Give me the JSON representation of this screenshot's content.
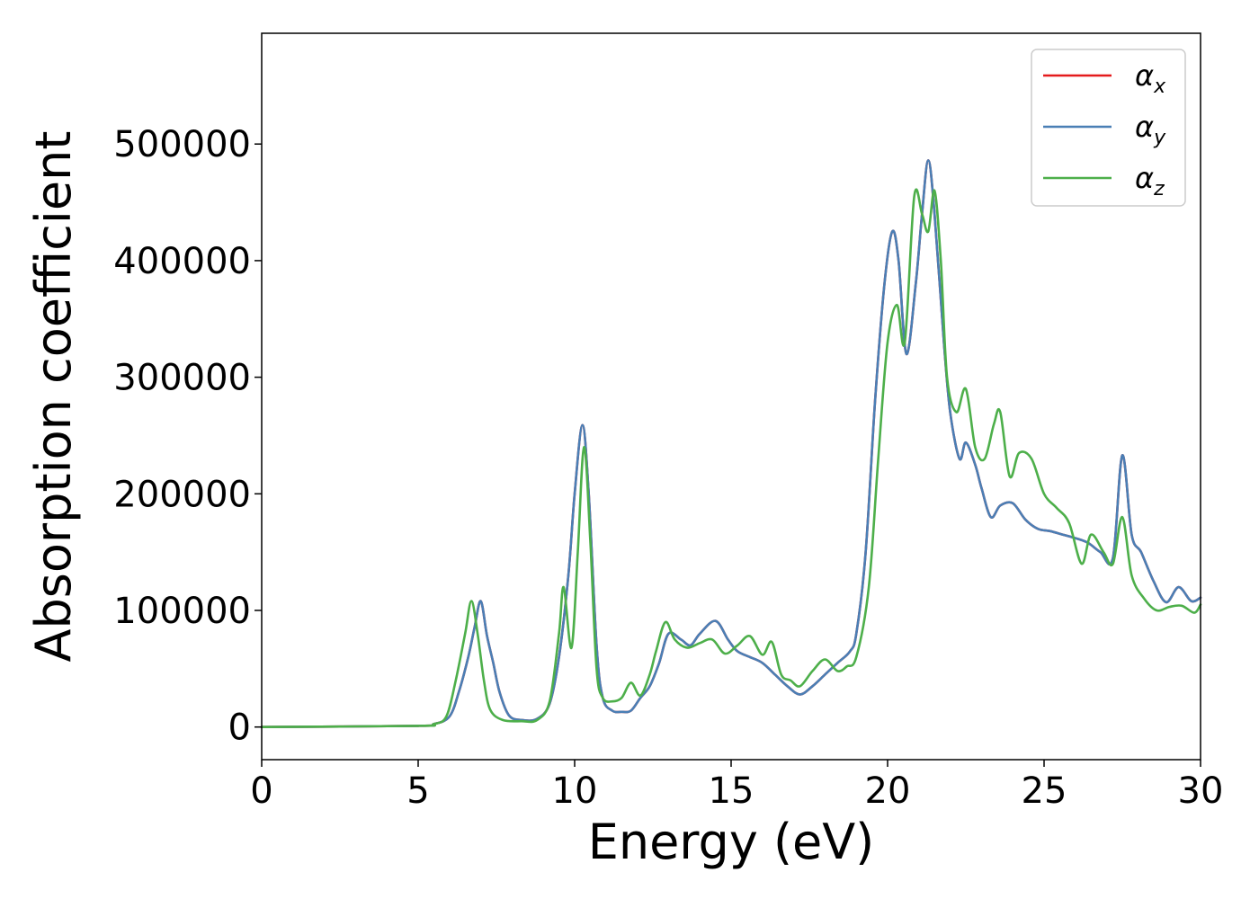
{
  "chart_data": {
    "type": "line",
    "title": "",
    "xlabel": "Energy (eV)",
    "ylabel": "Absorption coefficient",
    "xlim": [
      0,
      30
    ],
    "ylim": [
      -28000,
      595000
    ],
    "xticks": [
      0,
      5,
      10,
      15,
      20,
      25,
      30
    ],
    "xtick_labels": [
      "0",
      "5",
      "10",
      "15",
      "20",
      "25",
      "30"
    ],
    "yticks": [
      0,
      100000,
      200000,
      300000,
      400000,
      500000
    ],
    "ytick_labels": [
      "0",
      "100000",
      "200000",
      "300000",
      "400000",
      "500000"
    ],
    "grid": false,
    "legend_position": "top-right",
    "series": [
      {
        "name": "α",
        "subscript": "x",
        "color": "#e41a1c",
        "points": [
          [
            0,
            0
          ],
          [
            5,
            1000
          ],
          [
            5.5,
            2500
          ],
          [
            6,
            9000
          ],
          [
            6.3,
            30000
          ],
          [
            6.6,
            60000
          ],
          [
            6.8,
            85000
          ],
          [
            7.0,
            108000
          ],
          [
            7.2,
            78000
          ],
          [
            7.4,
            55000
          ],
          [
            7.6,
            30000
          ],
          [
            7.9,
            10000
          ],
          [
            8.3,
            6000
          ],
          [
            8.8,
            7000
          ],
          [
            9.2,
            20000
          ],
          [
            9.5,
            60000
          ],
          [
            9.8,
            130000
          ],
          [
            10.0,
            200000
          ],
          [
            10.25,
            259000
          ],
          [
            10.45,
            200000
          ],
          [
            10.7,
            70000
          ],
          [
            10.9,
            25000
          ],
          [
            11.2,
            14000
          ],
          [
            11.5,
            13000
          ],
          [
            11.8,
            14000
          ],
          [
            12.1,
            25000
          ],
          [
            12.4,
            35000
          ],
          [
            12.7,
            55000
          ],
          [
            13.0,
            80000
          ],
          [
            13.4,
            75000
          ],
          [
            13.7,
            70000
          ],
          [
            14.0,
            80000
          ],
          [
            14.5,
            91000
          ],
          [
            14.9,
            75000
          ],
          [
            15.2,
            65000
          ],
          [
            15.6,
            60000
          ],
          [
            16.0,
            55000
          ],
          [
            16.4,
            45000
          ],
          [
            16.8,
            35000
          ],
          [
            17.2,
            28000
          ],
          [
            17.6,
            35000
          ],
          [
            18.0,
            45000
          ],
          [
            18.4,
            55000
          ],
          [
            18.8,
            65000
          ],
          [
            19.0,
            80000
          ],
          [
            19.3,
            150000
          ],
          [
            19.6,
            280000
          ],
          [
            19.9,
            380000
          ],
          [
            20.15,
            425000
          ],
          [
            20.35,
            400000
          ],
          [
            20.6,
            320000
          ],
          [
            20.9,
            380000
          ],
          [
            21.1,
            440000
          ],
          [
            21.3,
            486000
          ],
          [
            21.5,
            440000
          ],
          [
            21.8,
            330000
          ],
          [
            22.0,
            270000
          ],
          [
            22.3,
            230000
          ],
          [
            22.5,
            244000
          ],
          [
            22.8,
            225000
          ],
          [
            23.0,
            205000
          ],
          [
            23.3,
            180000
          ],
          [
            23.6,
            190000
          ],
          [
            24.0,
            192000
          ],
          [
            24.4,
            178000
          ],
          [
            24.8,
            170000
          ],
          [
            25.2,
            168000
          ],
          [
            25.6,
            165000
          ],
          [
            26.0,
            162000
          ],
          [
            26.4,
            158000
          ],
          [
            26.8,
            150000
          ],
          [
            27.2,
            145000
          ],
          [
            27.5,
            233000
          ],
          [
            27.8,
            165000
          ],
          [
            28.1,
            150000
          ],
          [
            28.5,
            125000
          ],
          [
            28.9,
            107000
          ],
          [
            29.3,
            120000
          ],
          [
            29.7,
            108000
          ],
          [
            30,
            111000
          ]
        ]
      },
      {
        "name": "α",
        "subscript": "y",
        "color": "#4a7fb5",
        "points": [
          [
            0,
            0
          ],
          [
            5,
            1000
          ],
          [
            5.5,
            2500
          ],
          [
            6,
            9000
          ],
          [
            6.3,
            30000
          ],
          [
            6.6,
            60000
          ],
          [
            6.8,
            85000
          ],
          [
            7.0,
            108000
          ],
          [
            7.2,
            78000
          ],
          [
            7.4,
            55000
          ],
          [
            7.6,
            30000
          ],
          [
            7.9,
            10000
          ],
          [
            8.3,
            6000
          ],
          [
            8.8,
            7000
          ],
          [
            9.2,
            20000
          ],
          [
            9.5,
            60000
          ],
          [
            9.8,
            130000
          ],
          [
            10.0,
            200000
          ],
          [
            10.25,
            259000
          ],
          [
            10.45,
            200000
          ],
          [
            10.7,
            70000
          ],
          [
            10.9,
            25000
          ],
          [
            11.2,
            14000
          ],
          [
            11.5,
            13000
          ],
          [
            11.8,
            14000
          ],
          [
            12.1,
            25000
          ],
          [
            12.4,
            35000
          ],
          [
            12.7,
            55000
          ],
          [
            13.0,
            80000
          ],
          [
            13.4,
            75000
          ],
          [
            13.7,
            70000
          ],
          [
            14.0,
            80000
          ],
          [
            14.5,
            91000
          ],
          [
            14.9,
            75000
          ],
          [
            15.2,
            65000
          ],
          [
            15.6,
            60000
          ],
          [
            16.0,
            55000
          ],
          [
            16.4,
            45000
          ],
          [
            16.8,
            35000
          ],
          [
            17.2,
            28000
          ],
          [
            17.6,
            35000
          ],
          [
            18.0,
            45000
          ],
          [
            18.4,
            55000
          ],
          [
            18.8,
            65000
          ],
          [
            19.0,
            80000
          ],
          [
            19.3,
            150000
          ],
          [
            19.6,
            280000
          ],
          [
            19.9,
            380000
          ],
          [
            20.15,
            425000
          ],
          [
            20.35,
            400000
          ],
          [
            20.6,
            320000
          ],
          [
            20.9,
            380000
          ],
          [
            21.1,
            440000
          ],
          [
            21.3,
            486000
          ],
          [
            21.5,
            440000
          ],
          [
            21.8,
            330000
          ],
          [
            22.0,
            270000
          ],
          [
            22.3,
            230000
          ],
          [
            22.5,
            244000
          ],
          [
            22.8,
            225000
          ],
          [
            23.0,
            205000
          ],
          [
            23.3,
            180000
          ],
          [
            23.6,
            190000
          ],
          [
            24.0,
            192000
          ],
          [
            24.4,
            178000
          ],
          [
            24.8,
            170000
          ],
          [
            25.2,
            168000
          ],
          [
            25.6,
            165000
          ],
          [
            26.0,
            162000
          ],
          [
            26.4,
            158000
          ],
          [
            26.8,
            150000
          ],
          [
            27.2,
            145000
          ],
          [
            27.5,
            233000
          ],
          [
            27.8,
            165000
          ],
          [
            28.1,
            150000
          ],
          [
            28.5,
            125000
          ],
          [
            28.9,
            107000
          ],
          [
            29.3,
            120000
          ],
          [
            29.7,
            108000
          ],
          [
            30,
            111000
          ]
        ]
      },
      {
        "name": "α",
        "subscript": "z",
        "color": "#4daf4a",
        "points": [
          [
            0,
            0
          ],
          [
            5,
            1000
          ],
          [
            5.5,
            2500
          ],
          [
            5.9,
            9000
          ],
          [
            6.2,
            40000
          ],
          [
            6.5,
            80000
          ],
          [
            6.7,
            108000
          ],
          [
            6.9,
            80000
          ],
          [
            7.1,
            40000
          ],
          [
            7.3,
            15000
          ],
          [
            7.7,
            6000
          ],
          [
            8.3,
            5000
          ],
          [
            8.8,
            6000
          ],
          [
            9.2,
            22000
          ],
          [
            9.5,
            80000
          ],
          [
            9.65,
            120000
          ],
          [
            9.9,
            68000
          ],
          [
            10.1,
            150000
          ],
          [
            10.3,
            240000
          ],
          [
            10.5,
            160000
          ],
          [
            10.7,
            50000
          ],
          [
            10.9,
            25000
          ],
          [
            11.2,
            22000
          ],
          [
            11.5,
            25000
          ],
          [
            11.8,
            38000
          ],
          [
            12.1,
            27000
          ],
          [
            12.4,
            45000
          ],
          [
            12.6,
            65000
          ],
          [
            12.9,
            90000
          ],
          [
            13.2,
            75000
          ],
          [
            13.6,
            68000
          ],
          [
            14.0,
            72000
          ],
          [
            14.4,
            75000
          ],
          [
            14.8,
            63000
          ],
          [
            15.2,
            70000
          ],
          [
            15.6,
            78000
          ],
          [
            16.0,
            62000
          ],
          [
            16.3,
            73000
          ],
          [
            16.6,
            45000
          ],
          [
            16.9,
            40000
          ],
          [
            17.2,
            35000
          ],
          [
            17.6,
            48000
          ],
          [
            18.0,
            58000
          ],
          [
            18.4,
            48000
          ],
          [
            18.7,
            52000
          ],
          [
            19.0,
            60000
          ],
          [
            19.4,
            120000
          ],
          [
            19.7,
            230000
          ],
          [
            20.0,
            330000
          ],
          [
            20.3,
            362000
          ],
          [
            20.55,
            330000
          ],
          [
            20.85,
            455000
          ],
          [
            21.1,
            440000
          ],
          [
            21.3,
            425000
          ],
          [
            21.5,
            460000
          ],
          [
            21.7,
            400000
          ],
          [
            21.9,
            300000
          ],
          [
            22.2,
            270000
          ],
          [
            22.5,
            290000
          ],
          [
            22.8,
            240000
          ],
          [
            23.1,
            230000
          ],
          [
            23.4,
            260000
          ],
          [
            23.6,
            270000
          ],
          [
            23.9,
            215000
          ],
          [
            24.2,
            235000
          ],
          [
            24.6,
            230000
          ],
          [
            25.0,
            200000
          ],
          [
            25.4,
            188000
          ],
          [
            25.8,
            175000
          ],
          [
            26.2,
            140000
          ],
          [
            26.5,
            165000
          ],
          [
            26.9,
            150000
          ],
          [
            27.2,
            140000
          ],
          [
            27.5,
            180000
          ],
          [
            27.8,
            130000
          ],
          [
            28.2,
            110000
          ],
          [
            28.6,
            100000
          ],
          [
            29.0,
            103000
          ],
          [
            29.4,
            104000
          ],
          [
            29.8,
            98000
          ],
          [
            30,
            105000
          ]
        ]
      }
    ]
  }
}
